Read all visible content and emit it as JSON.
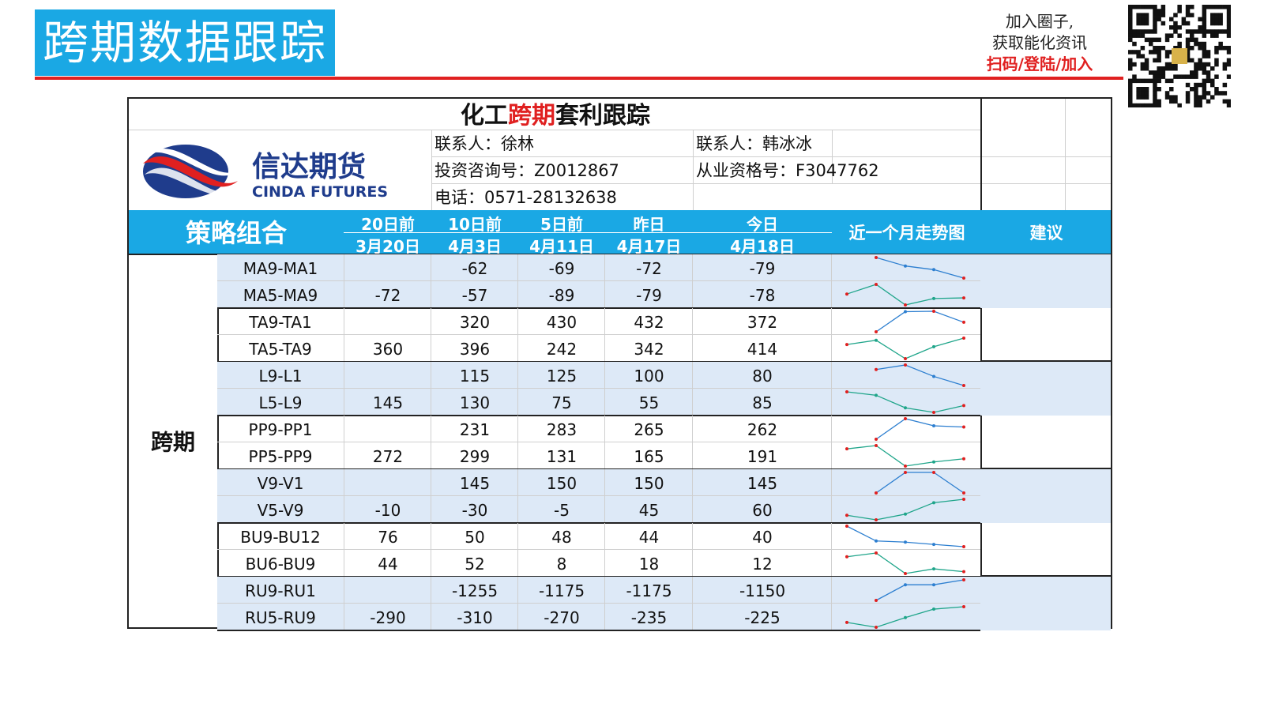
{
  "page": {
    "title": "跨期数据跟踪",
    "join_line1": "加入圈子,",
    "join_line2": "获取能化资讯",
    "join_line3": "扫码/登陆/加入",
    "accent": "#1aa8e4",
    "red": "#e02020"
  },
  "sheet": {
    "title_pre": "化工",
    "title_red": "跨期",
    "title_post": "套利跟踪",
    "logo_cn": "信达期货",
    "logo_en": "CINDA FUTURES",
    "contact1": "联系人：徐林",
    "contact2": "联系人：韩冰冰",
    "invest_no": "投资咨询号：Z0012867",
    "cert_no": "从业资格号：F3047762",
    "phone": "电话：0571-28132638"
  },
  "header": {
    "strategy": "策略组合",
    "c1_top": "20日前",
    "c1_bot": "3月20日",
    "c2_top": "10日前",
    "c2_bot": "4月3日",
    "c3_top": "5日前",
    "c3_bot": "4月11日",
    "c4_top": "昨日",
    "c4_bot": "4月17日",
    "c5_top": "今日",
    "c5_bot": "4月18日",
    "trend": "近一个月走势图",
    "advice": "建议"
  },
  "group": "跨期",
  "rows": [
    {
      "name": "MA9-MA1",
      "v": [
        "",
        "-62",
        "-69",
        "-72",
        "-79"
      ]
    },
    {
      "name": "MA5-MA9",
      "v": [
        "-72",
        "-57",
        "-89",
        "-79",
        "-78"
      ]
    },
    {
      "name": "TA9-TA1",
      "v": [
        "",
        "320",
        "430",
        "432",
        "372"
      ]
    },
    {
      "name": "TA5-TA9",
      "v": [
        "360",
        "396",
        "242",
        "342",
        "414"
      ]
    },
    {
      "name": "L9-L1",
      "v": [
        "",
        "115",
        "125",
        "100",
        "80"
      ]
    },
    {
      "name": "L5-L9",
      "v": [
        "145",
        "130",
        "75",
        "55",
        "85"
      ]
    },
    {
      "name": "PP9-PP1",
      "v": [
        "",
        "231",
        "283",
        "265",
        "262"
      ]
    },
    {
      "name": "PP5-PP9",
      "v": [
        "272",
        "299",
        "131",
        "165",
        "191"
      ]
    },
    {
      "name": "V9-V1",
      "v": [
        "",
        "145",
        "150",
        "150",
        "145"
      ]
    },
    {
      "name": "V5-V9",
      "v": [
        "-10",
        "-30",
        "-5",
        "45",
        "60"
      ]
    },
    {
      "name": "BU9-BU12",
      "v": [
        "76",
        "50",
        "48",
        "44",
        "40"
      ]
    },
    {
      "name": "BU6-BU9",
      "v": [
        "44",
        "52",
        "8",
        "18",
        "12"
      ]
    },
    {
      "name": "RU9-RU1",
      "v": [
        "",
        "-1255",
        "-1175",
        "-1175",
        "-1150"
      ]
    },
    {
      "name": "RU5-RU9",
      "v": [
        "-290",
        "-310",
        "-270",
        "-235",
        "-225"
      ]
    }
  ]
}
